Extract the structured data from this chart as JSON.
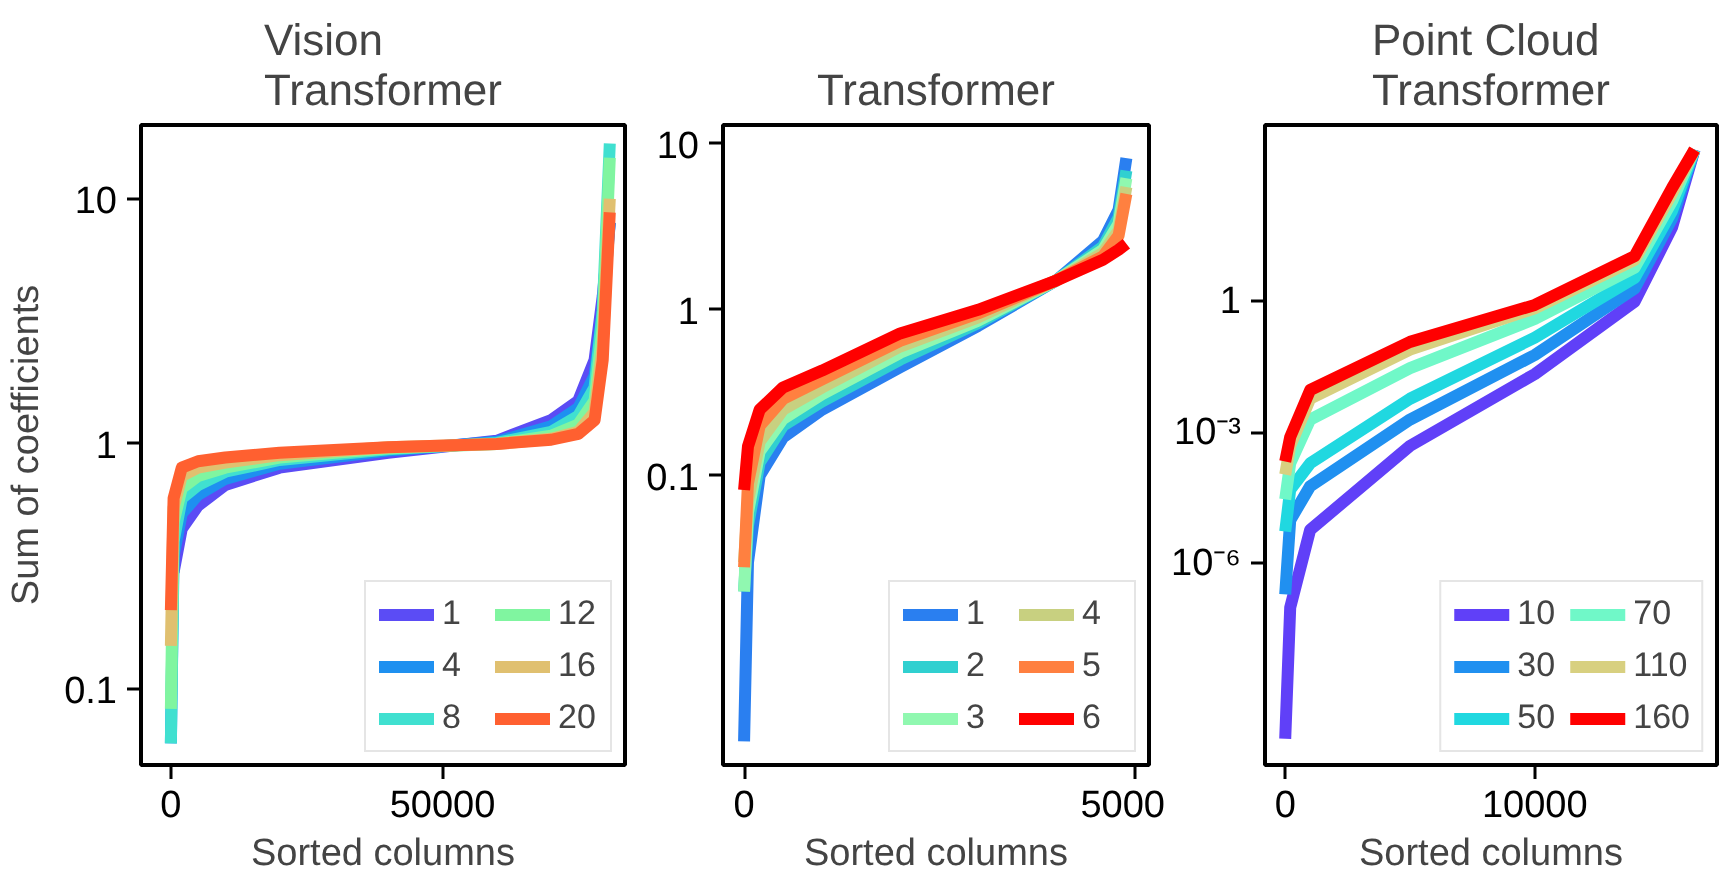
{
  "chart_data": [
    {
      "type": "line",
      "title": "Vision\nTransformer",
      "xlabel": "Sorted columns",
      "ylabel": "Sum of coefficients",
      "log": "y",
      "legend": "bottom right",
      "xlim": [
        -5500,
        83600
      ],
      "ylim": [
        0.049,
        20
      ],
      "xticks": [
        0,
        50000
      ],
      "yticks": [
        0.1,
        1,
        10
      ],
      "x": [
        0,
        500,
        2000,
        5000,
        10000,
        20000,
        40000,
        60000,
        70000,
        75000,
        78000,
        79500,
        80800
      ],
      "series": [
        {
          "name": "1",
          "color": "#5b4cf5",
          "values": [
            null,
            0.3,
            0.45,
            0.56,
            0.68,
            0.8,
            0.92,
            1.03,
            1.25,
            1.5,
            2.2,
            4,
            8
          ]
        },
        {
          "name": "4",
          "color": "#1e90f0",
          "values": [
            0.06,
            0.35,
            0.52,
            0.62,
            0.72,
            0.83,
            0.94,
            1.02,
            1.18,
            1.4,
            1.9,
            3.5,
            8
          ]
        },
        {
          "name": "8",
          "color": "#40e0d0",
          "values": [
            0.06,
            0.4,
            0.6,
            0.68,
            0.77,
            0.86,
            0.95,
            1.01,
            1.12,
            1.3,
            1.7,
            3.5,
            16.8
          ]
        },
        {
          "name": "12",
          "color": "#80f5a0",
          "values": [
            0.083,
            0.48,
            0.66,
            0.74,
            0.8,
            0.88,
            0.96,
            1.0,
            1.08,
            1.2,
            1.5,
            3,
            14.7
          ]
        },
        {
          "name": "16",
          "color": "#e0c070",
          "values": [
            0.15,
            0.55,
            0.74,
            0.8,
            0.84,
            0.9,
            0.97,
            1.0,
            1.05,
            1.12,
            1.35,
            2.5,
            10
          ]
        },
        {
          "name": "20",
          "color": "#ff6030",
          "values": [
            0.21,
            0.6,
            0.8,
            0.85,
            0.88,
            0.92,
            0.97,
            1.0,
            1.04,
            1.1,
            1.25,
            2.2,
            8.8
          ]
        }
      ]
    },
    {
      "type": "line",
      "title": "Transformer",
      "xlabel": "Sorted columns",
      "log": "y",
      "legend": "bottom right",
      "xlim": [
        -270,
        5190
      ],
      "ylim": [
        0.0018,
        13
      ],
      "xticks": [
        0,
        5000
      ],
      "yticks": [
        0.1,
        1,
        10
      ],
      "x": [
        0,
        50,
        200,
        500,
        1000,
        2000,
        3000,
        4000,
        4600,
        4800,
        4900
      ],
      "series": [
        {
          "name": "1",
          "color": "#2a7ff0",
          "values": [
            0.0025,
            0.03,
            0.1,
            0.17,
            0.25,
            0.45,
            0.8,
            1.5,
            2.6,
            4,
            8.2
          ]
        },
        {
          "name": "2",
          "color": "#30d0d0",
          "values": [
            0.02,
            0.05,
            0.12,
            0.2,
            0.28,
            0.5,
            0.83,
            1.5,
            2.4,
            3.6,
            6.9
          ]
        },
        {
          "name": "3",
          "color": "#90f8b0",
          "values": [
            0.02,
            0.06,
            0.14,
            0.22,
            0.31,
            0.55,
            0.86,
            1.5,
            2.3,
            3.3,
            6.2
          ]
        },
        {
          "name": "4",
          "color": "#c8d080",
          "values": [
            0.03,
            0.07,
            0.16,
            0.25,
            0.34,
            0.6,
            0.9,
            1.5,
            2.2,
            3,
            5.5
          ]
        },
        {
          "name": "5",
          "color": "#ff8040",
          "values": [
            0.028,
            0.09,
            0.2,
            0.29,
            0.38,
            0.65,
            0.95,
            1.5,
            2.1,
            2.8,
            5
          ]
        },
        {
          "name": "6",
          "color": "#ff0000",
          "values": [
            0.082,
            0.15,
            0.25,
            0.34,
            0.43,
            0.72,
            1.0,
            1.5,
            2.0,
            2.3,
            2.5
          ]
        }
      ]
    },
    {
      "type": "line",
      "title": "Point Cloud\nTransformer",
      "xlabel": "Sorted columns",
      "log": "y",
      "legend": "bottom right",
      "xlim": [
        -810,
        17300
      ],
      "ylim": [
        2.5e-11,
        11000
      ],
      "xticks": [
        0,
        10000
      ],
      "yticks": [
        1,
        {
          "value": 0.001,
          "label": "10⁻³"
        },
        {
          "value": 1e-06,
          "label": "10⁻⁶"
        }
      ],
      "x": [
        0,
        200,
        1000,
        5000,
        10000,
        14000,
        15500,
        16400
      ],
      "series": [
        {
          "name": "10",
          "color": "#6040f8",
          "values": [
            1e-10,
            1e-07,
            6e-06,
            0.0005,
            0.022,
            1,
            50,
            3000
          ]
        },
        {
          "name": "30",
          "color": "#2090f0",
          "values": [
            2e-07,
            1e-05,
            6e-05,
            0.002,
            0.06,
            2,
            80,
            3000
          ]
        },
        {
          "name": "50",
          "color": "#20d8e0",
          "values": [
            5.5e-06,
            5e-05,
            0.0002,
            0.006,
            0.15,
            3.5,
            120,
            3000
          ]
        },
        {
          "name": "70",
          "color": "#70f8c8",
          "values": [
            3e-05,
            0.0002,
            0.002,
            0.03,
            0.4,
            6,
            200,
            3000
          ]
        },
        {
          "name": "110",
          "color": "#d8d080",
          "values": [
            0.00011,
            0.0005,
            0.006,
            0.08,
            0.7,
            9,
            300,
            3000
          ]
        },
        {
          "name": "160",
          "color": "#ff0000",
          "values": [
            0.00022,
            0.0008,
            0.0095,
            0.12,
            0.84,
            11,
            400,
            3000
          ]
        }
      ]
    }
  ]
}
